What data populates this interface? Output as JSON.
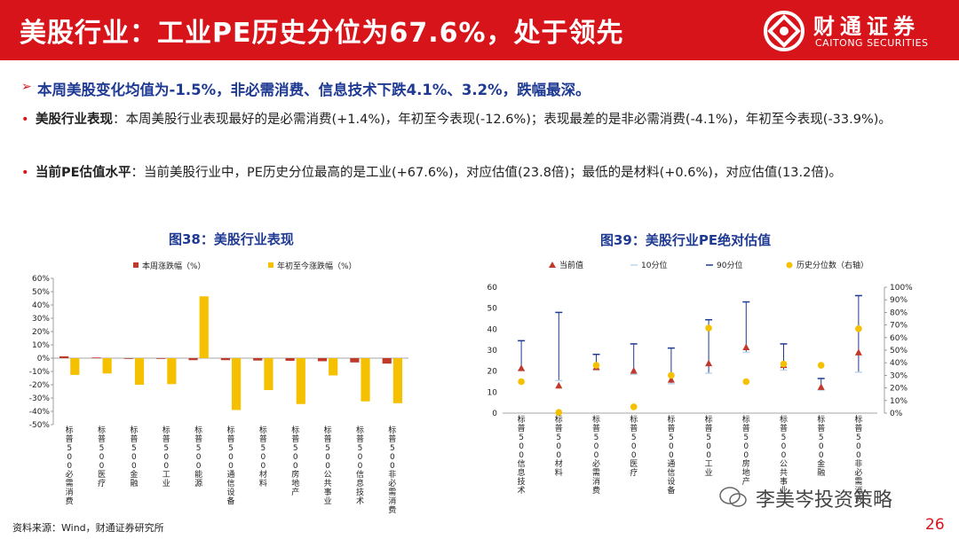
{
  "header": {
    "title": "美股行业：工业PE历史分位为67.6%，处于领先",
    "logo_cn": "财通证券",
    "logo_en": "CAITONG SECURITIES"
  },
  "headline": "本周美股变化均值为-1.5%，非必需消费、信息技术下跌4.1%、3.2%，跌幅最深。",
  "bullets": [
    {
      "label": "美股行业表现",
      "text": "：本周美股行业表现最好的是必需消费(+1.4%)，年初至今表现(-12.6%)；表现最差的是非必需消费(-4.1%)，年初至今表现(-33.9%)。"
    },
    {
      "label": "当前PE估值水平",
      "text": "：当前美股行业中，PE历史分位最高的是工业(+67.6%)，对应估值(23.8倍)；最低的是材料(+0.6%)，对应估值(13.2倍)。"
    }
  ],
  "chart_titles": {
    "left": "图38：美股行业表现",
    "right": "图39：美股行业PE绝对估值"
  },
  "footer": {
    "source": "资料来源：Wind，财通证券研究所",
    "page": "26",
    "watermark": "李美岑投资策略"
  },
  "colors": {
    "brand_red": "#d7141a",
    "title_blue": "#1f3a93",
    "weekly": "#c0392b",
    "ytd": "#f5c000"
  },
  "chart_data": [
    {
      "type": "bar",
      "categories": [
        "标普500必需消费",
        "标普500医疗",
        "标普500金融",
        "标普500工业",
        "标普500能源",
        "标普500通信设备",
        "标普500材料",
        "标普500房地产",
        "标普500公共事业",
        "标普500信息技术",
        "标普500非必需消费"
      ],
      "series": [
        {
          "name": "本周涨跌幅（%）",
          "values": [
            1.4,
            0.5,
            -0.3,
            -0.5,
            -1.5,
            -1.5,
            -1.8,
            -2.0,
            -2.3,
            -3.2,
            -4.1
          ]
        },
        {
          "name": "年初至今涨跌幅（%）",
          "values": [
            -12.6,
            -11.5,
            -20.0,
            -19.5,
            46.5,
            -39.0,
            -24.0,
            -34.5,
            -13.0,
            -32.5,
            -33.9
          ]
        }
      ],
      "ylim": [
        -50,
        60
      ],
      "yticks": [
        "60%",
        "50%",
        "40%",
        "30%",
        "20%",
        "10%",
        "0%",
        "-10%",
        "-20%",
        "-30%",
        "-40%",
        "-50%"
      ],
      "legend": "top"
    },
    {
      "type": "scatter",
      "categories": [
        "标普500信息技术",
        "标普500材料",
        "标普500必需消费",
        "标普500医疗",
        "标普500通信设备",
        "标普500工业",
        "标普500房地产",
        "标普500公共事业",
        "标普500金融",
        "标普500非必需消费"
      ],
      "series": [
        {
          "name": "当前值",
          "values": [
            21.5,
            13.2,
            22.0,
            20.3,
            16.0,
            23.8,
            31.5,
            23.0,
            12.5,
            29.0
          ]
        },
        {
          "name": "10分位",
          "values": [
            20.5,
            15.5,
            20.5,
            18.5,
            14.0,
            19.0,
            29.0,
            20.5,
            11.0,
            19.5
          ]
        },
        {
          "name": "90分位",
          "values": [
            34.5,
            48.0,
            28.0,
            33.0,
            31.0,
            44.5,
            53.0,
            33.0,
            16.5,
            56.0
          ]
        },
        {
          "name": "历史分位数（右轴）",
          "axis": "right",
          "values": [
            25,
            0.6,
            38,
            5,
            30,
            67.6,
            25,
            39,
            38,
            67
          ]
        }
      ],
      "ylim_left": [
        0,
        60
      ],
      "ylim_right": [
        0,
        100
      ],
      "yticks_left": [
        "60",
        "50",
        "40",
        "30",
        "20",
        "10",
        "0"
      ],
      "yticks_right": [
        "100%",
        "90%",
        "80%",
        "70%",
        "60%",
        "50%",
        "40%",
        "30%",
        "20%",
        "10%",
        "0%"
      ],
      "legend": "top"
    }
  ]
}
